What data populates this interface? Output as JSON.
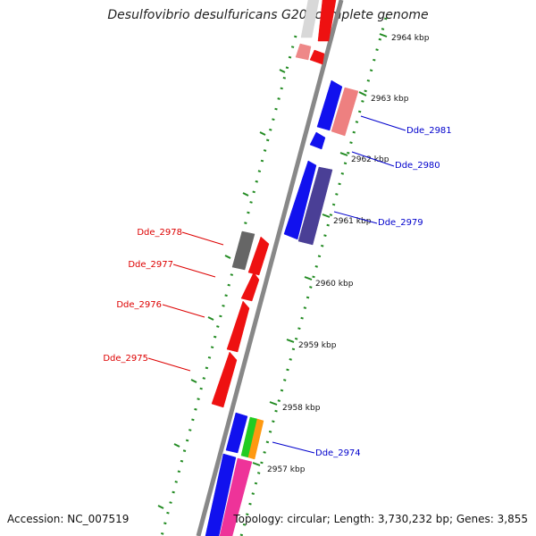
{
  "header": {
    "title": "Desulfovibrio desulfuricans G20, complete genome"
  },
  "footer": {
    "accession": "Accession: NC_007519",
    "topology": "Topology: circular; Length: 3,730,232 bp; Genes: 3,855"
  },
  "colors": {
    "backbone": "#888888",
    "dotted_ring": "#228b22",
    "label_forward": "#0000cc",
    "label_reverse": "#dd0000"
  },
  "scale_ticks": [
    "2964 kbp",
    "2963 kbp",
    "2962 kbp",
    "2961 kbp",
    "2960 kbp",
    "2959 kbp",
    "2958 kbp",
    "2957 kbp"
  ],
  "gene_labels": [
    {
      "name": "Dde_2981",
      "strand": "forward"
    },
    {
      "name": "Dde_2980",
      "strand": "forward"
    },
    {
      "name": "Dde_2979",
      "strand": "forward"
    },
    {
      "name": "Dde_2978",
      "strand": "reverse"
    },
    {
      "name": "Dde_2977",
      "strand": "reverse"
    },
    {
      "name": "Dde_2976",
      "strand": "reverse"
    },
    {
      "name": "Dde_2975",
      "strand": "reverse"
    },
    {
      "name": "Dde_2974",
      "strand": "forward"
    }
  ],
  "features": [
    {
      "name": "outer-grey-1",
      "color": "#d8d8d8"
    },
    {
      "name": "outer-red-1",
      "color": "#ee1111"
    },
    {
      "name": "outer-pink-1",
      "color": "#ee8888"
    },
    {
      "name": "outer-red-2",
      "color": "#ee1111"
    },
    {
      "name": "Dde_2981-block-blue",
      "color": "#1111ee"
    },
    {
      "name": "Dde_2981-block-pink",
      "color": "#ee8080"
    },
    {
      "name": "Dde_2980-block",
      "color": "#1111ee"
    },
    {
      "name": "Dde_2979-block-blue",
      "color": "#1111ee"
    },
    {
      "name": "Dde_2979-block-purple",
      "color": "#4a3f96"
    },
    {
      "name": "Dde_2978-block-grey",
      "color": "#666666"
    },
    {
      "name": "Dde_2978-block-red",
      "color": "#ee1111"
    },
    {
      "name": "Dde_2977-block",
      "color": "#ee1111"
    },
    {
      "name": "Dde_2976-block",
      "color": "#ee1111"
    },
    {
      "name": "Dde_2975-block",
      "color": "#ee1111"
    },
    {
      "name": "Dde_2974-block-blue",
      "color": "#1111ee"
    },
    {
      "name": "Dde_2974-block-green",
      "color": "#22cc22"
    },
    {
      "name": "Dde_2974-block-orange",
      "color": "#ff9911"
    },
    {
      "name": "bottom-blue",
      "color": "#1111ee"
    },
    {
      "name": "bottom-magenta",
      "color": "#ee3399"
    }
  ]
}
